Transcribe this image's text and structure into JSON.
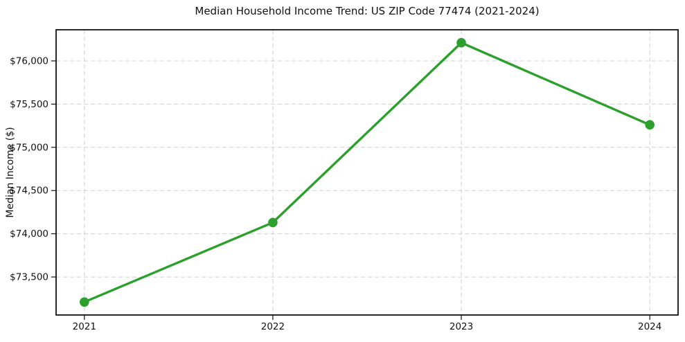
{
  "chart_data": {
    "type": "line",
    "title": "Median Household Income Trend: US ZIP Code 77474 (2021-2024)",
    "xlabel": "",
    "ylabel": "Median Income ($)",
    "x": [
      2021,
      2022,
      2023,
      2024
    ],
    "x_tick_labels": [
      "2021",
      "2022",
      "2023",
      "2024"
    ],
    "series": [
      {
        "name": "median-household-income",
        "values": [
          73210,
          74130,
          76210,
          75260
        ],
        "color": "#2ca02c",
        "marker": "circle"
      }
    ],
    "y_ticks": [
      73500,
      74000,
      74500,
      75000,
      75500,
      76000
    ],
    "y_tick_labels": [
      "$73,500",
      "$74,000",
      "$74,500",
      "$75,000",
      "$75,500",
      "$76,000"
    ],
    "xlim": [
      2020.85,
      2024.15
    ],
    "ylim": [
      73060,
      76360
    ],
    "grid": true,
    "grid_style": "dashed",
    "legend": "none",
    "colors": {
      "line": "#2ca02c",
      "grid": "#cfcfcf",
      "axis": "#111111",
      "text": "#111111",
      "background": "#ffffff"
    }
  }
}
